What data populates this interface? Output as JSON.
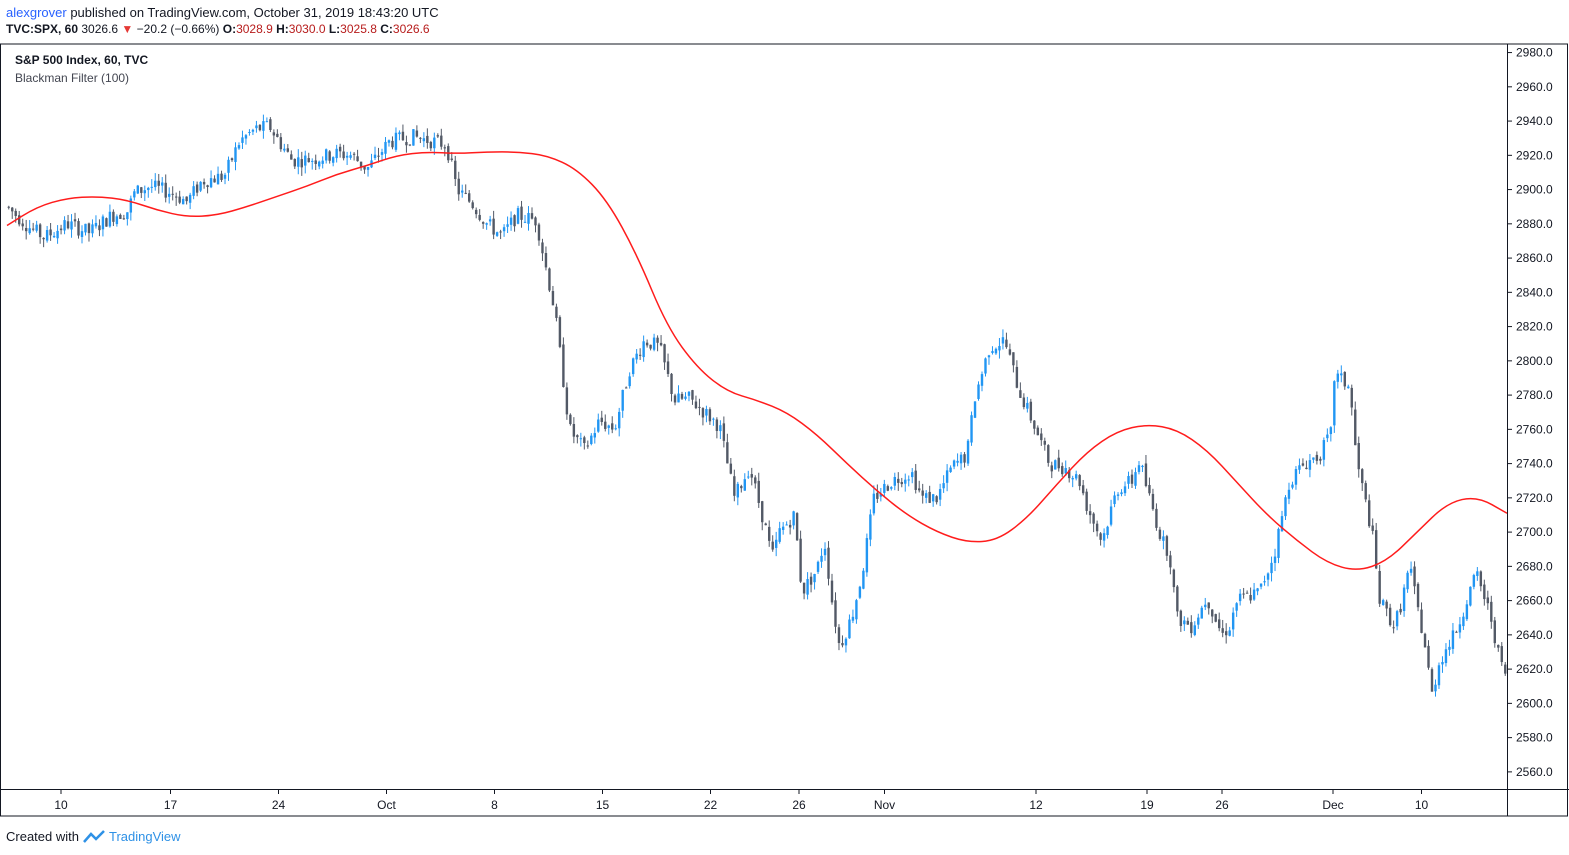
{
  "header": {
    "user": "alexgrover",
    "published_text": " published on TradingView.com, October 31, 2019 18:43:20 UTC",
    "symbol": "TVC:SPX, 60",
    "last": "3026.6",
    "down_arrow": "▼",
    "change": "−20.2 (−0.66%)",
    "o_label": "O:",
    "o_value": "3028.9",
    "h_label": "H:",
    "h_value": "3030.0",
    "l_label": "L:",
    "l_value": "3025.8",
    "c_label": "C:",
    "c_value": "3026.6"
  },
  "legend": {
    "series_title": "S&P 500 Index, 60, TVC",
    "indicator": "Blackman Filter (100)"
  },
  "footer": {
    "created_with": "Created with",
    "brand": "TradingView"
  },
  "chart_data": {
    "type": "candlestick",
    "title": "S&P 500 Index, 60, TVC",
    "y_axis": {
      "position": "right",
      "range": [
        2550,
        2985
      ],
      "ticks": [
        2560,
        2580,
        2600,
        2620,
        2640,
        2660,
        2680,
        2700,
        2720,
        2740,
        2760,
        2780,
        2800,
        2820,
        2840,
        2860,
        2880,
        2900,
        2920,
        2940,
        2960,
        2980
      ],
      "tick_labels": [
        "2560.0",
        "2580.0",
        "2600.0",
        "2620.0",
        "2640.0",
        "2660.0",
        "2680.0",
        "2700.0",
        "2720.0",
        "2740.0",
        "2760.0",
        "2780.0",
        "2800.0",
        "2820.0",
        "2840.0",
        "2860.0",
        "2880.0",
        "2900.0",
        "2920.0",
        "2940.0",
        "2960.0",
        "2980.0"
      ]
    },
    "x_axis": {
      "range": [
        0,
        100
      ],
      "ticks": [
        {
          "label": "10",
          "pos": 3.6
        },
        {
          "label": "17",
          "pos": 10.9
        },
        {
          "label": "24",
          "pos": 18.1
        },
        {
          "label": "Oct",
          "pos": 25.3
        },
        {
          "label": "8",
          "pos": 32.5
        },
        {
          "label": "15",
          "pos": 39.7
        },
        {
          "label": "22",
          "pos": 46.9
        },
        {
          "label": "26",
          "pos": 52.8
        },
        {
          "label": "Nov",
          "pos": 58.5
        },
        {
          "label": "12",
          "pos": 68.6
        },
        {
          "label": "19",
          "pos": 76.0
        },
        {
          "label": "26",
          "pos": 81.0
        },
        {
          "label": "Dec",
          "pos": 88.4
        },
        {
          "label": "10",
          "pos": 94.3
        }
      ]
    },
    "price_path": [
      [
        0,
        2890
      ],
      [
        1.5,
        2878
      ],
      [
        2.5,
        2872
      ],
      [
        4,
        2880
      ],
      [
        5.5,
        2875
      ],
      [
        7,
        2885
      ],
      [
        8,
        2887
      ],
      [
        8.5,
        2898
      ],
      [
        9.5,
        2902
      ],
      [
        11,
        2898
      ],
      [
        12,
        2893
      ],
      [
        13,
        2905
      ],
      [
        14.5,
        2908
      ],
      [
        15.5,
        2928
      ],
      [
        16.5,
        2935
      ],
      [
        17.5,
        2937
      ],
      [
        18,
        2930
      ],
      [
        19,
        2917
      ],
      [
        20.5,
        2918
      ],
      [
        22,
        2921
      ],
      [
        23,
        2920
      ],
      [
        24,
        2912
      ],
      [
        25.5,
        2928
      ],
      [
        27,
        2931
      ],
      [
        28.5,
        2928
      ],
      [
        29.3,
        2926
      ],
      [
        30,
        2900
      ],
      [
        31,
        2892
      ],
      [
        32,
        2880
      ],
      [
        33,
        2873
      ],
      [
        34,
        2885
      ],
      [
        35.3,
        2882
      ],
      [
        35.8,
        2860
      ],
      [
        36.5,
        2830
      ],
      [
        37.5,
        2760
      ],
      [
        38.5,
        2748
      ],
      [
        39.5,
        2765
      ],
      [
        40.5,
        2760
      ],
      [
        41.5,
        2795
      ],
      [
        42.5,
        2812
      ],
      [
        43.5,
        2808
      ],
      [
        44.5,
        2777
      ],
      [
        45.5,
        2778
      ],
      [
        46.5,
        2770
      ],
      [
        47.5,
        2762
      ],
      [
        48.5,
        2720
      ],
      [
        49.5,
        2738
      ],
      [
        50.5,
        2705
      ],
      [
        51,
        2685
      ],
      [
        51.5,
        2700
      ],
      [
        52.5,
        2710
      ],
      [
        53,
        2665
      ],
      [
        54,
        2678
      ],
      [
        54.5,
        2695
      ],
      [
        55,
        2660
      ],
      [
        55.5,
        2633
      ],
      [
        56.3,
        2650
      ],
      [
        57,
        2675
      ],
      [
        57.8,
        2720
      ],
      [
        59,
        2730
      ],
      [
        60.3,
        2735
      ],
      [
        61,
        2720
      ],
      [
        62,
        2720
      ],
      [
        63,
        2738
      ],
      [
        64,
        2745
      ],
      [
        64.5,
        2778
      ],
      [
        65.5,
        2808
      ],
      [
        66.5,
        2812
      ],
      [
        67.5,
        2782
      ],
      [
        68.5,
        2762
      ],
      [
        69.5,
        2740
      ],
      [
        70.5,
        2738
      ],
      [
        71.5,
        2730
      ],
      [
        72,
        2715
      ],
      [
        73,
        2695
      ],
      [
        74,
        2725
      ],
      [
        75,
        2730
      ],
      [
        75.5,
        2742
      ],
      [
        76,
        2725
      ],
      [
        77,
        2695
      ],
      [
        77.5,
        2688
      ],
      [
        78,
        2650
      ],
      [
        79,
        2645
      ],
      [
        80,
        2662
      ],
      [
        81,
        2640
      ],
      [
        81.5,
        2645
      ],
      [
        82,
        2660
      ],
      [
        83.5,
        2665
      ],
      [
        84.5,
        2688
      ],
      [
        85.5,
        2730
      ],
      [
        86.5,
        2740
      ],
      [
        87.5,
        2745
      ],
      [
        88.3,
        2758
      ],
      [
        88.5,
        2792
      ],
      [
        89.5,
        2785
      ],
      [
        90,
        2740
      ],
      [
        91,
        2700
      ],
      [
        91.5,
        2660
      ],
      [
        92.5,
        2645
      ],
      [
        93,
        2660
      ],
      [
        93.5,
        2680
      ],
      [
        94.5,
        2635
      ],
      [
        95,
        2605
      ],
      [
        95.5,
        2625
      ],
      [
        96.5,
        2640
      ],
      [
        97.5,
        2665
      ],
      [
        98,
        2675
      ],
      [
        99,
        2648
      ],
      [
        99.5,
        2625
      ],
      [
        100,
        2615
      ]
    ],
    "series": [
      {
        "name": "Blackman Filter (100)",
        "color": "#ff1c1c",
        "points": [
          [
            0,
            2879
          ],
          [
            2,
            2890
          ],
          [
            4,
            2895
          ],
          [
            6,
            2896
          ],
          [
            8,
            2894
          ],
          [
            10,
            2888
          ],
          [
            12,
            2884
          ],
          [
            14,
            2885
          ],
          [
            16,
            2890
          ],
          [
            18,
            2896
          ],
          [
            20,
            2902
          ],
          [
            22,
            2909
          ],
          [
            24,
            2914
          ],
          [
            26,
            2920
          ],
          [
            28,
            2922
          ],
          [
            30,
            2921
          ],
          [
            32,
            2922
          ],
          [
            34,
            2922
          ],
          [
            36,
            2920
          ],
          [
            38,
            2912
          ],
          [
            40,
            2894
          ],
          [
            42,
            2862
          ],
          [
            44,
            2820
          ],
          [
            46,
            2796
          ],
          [
            48,
            2782
          ],
          [
            50,
            2777
          ],
          [
            52,
            2770
          ],
          [
            54,
            2757
          ],
          [
            56,
            2740
          ],
          [
            58,
            2724
          ],
          [
            60,
            2710
          ],
          [
            62,
            2700
          ],
          [
            64,
            2694
          ],
          [
            66,
            2695
          ],
          [
            68,
            2708
          ],
          [
            70,
            2728
          ],
          [
            72,
            2747
          ],
          [
            74,
            2759
          ],
          [
            76,
            2763
          ],
          [
            78,
            2760
          ],
          [
            80,
            2748
          ],
          [
            82,
            2729
          ],
          [
            84,
            2710
          ],
          [
            86,
            2695
          ],
          [
            88,
            2682
          ],
          [
            90,
            2677
          ],
          [
            92,
            2683
          ],
          [
            94,
            2700
          ],
          [
            96,
            2717
          ],
          [
            98,
            2721
          ],
          [
            100,
            2711
          ]
        ]
      }
    ],
    "candle_colors": {
      "up": "#2196f3",
      "down": "#525966"
    }
  }
}
